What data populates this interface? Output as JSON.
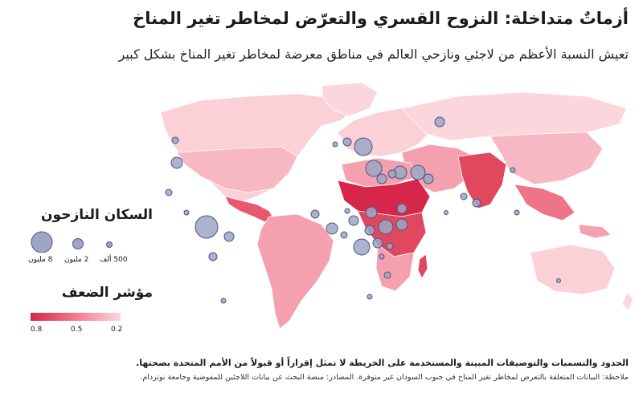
{
  "header": {
    "title": "أزماتٌ متداخلة: النزوح القسري والتعرّض لمخاطر تغير المناخ",
    "subtitle": "تعيش النسبة الأعظم من لاجئي ونازحي العالم في مناطق معرضة لمخاطر تغير المناخ بشكل كبير"
  },
  "legend": {
    "population": {
      "title": "السكان النازحون",
      "items": [
        {
          "label": "8 مليون",
          "value": 8000000
        },
        {
          "label": "2 مليون",
          "value": 2000000
        },
        {
          "label": "500 ألف",
          "value": 500000
        }
      ]
    },
    "vulnerability": {
      "title": "مؤشر الضعف",
      "ticks": [
        "0.8",
        "0.5",
        "0.2"
      ],
      "colors": [
        "#d6264a",
        "#f27a8e",
        "#fbd7dd"
      ]
    }
  },
  "footer": {
    "disclaimer": "الحدود والتسميات والتوصيفات المبينة والمستخدمة على الخريطة لا تمثل إقراراً أو قبولاً من الأمم المتحدة بصحتها.",
    "note": "ملاحظة: البيانات المتعلقة بالتعرض لمخاطر تغير المناخ في جنوب السودان غير متوفرة. المصادر: منصة البحث عن بيانات اللاجئين للمفوضية وجامعة نوتردام."
  },
  "colors": {
    "land_low": "#fbd0d7",
    "land_mid": "#f5a0ae",
    "land_high": "#e0485f",
    "bubble_fill": "#9ea6c4",
    "bubble_stroke": "#4b5380"
  }
}
